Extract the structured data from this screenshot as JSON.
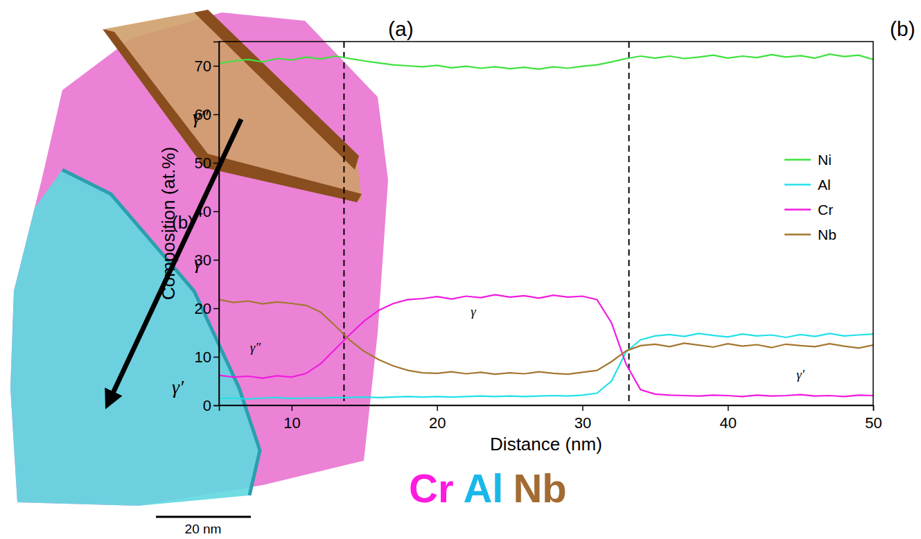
{
  "panel_a": {
    "label": "(a)",
    "phase_labels": [
      "γ″",
      "γ",
      "γ′"
    ],
    "arrow_label": "(b)",
    "scale_bar_label": "20 nm",
    "element_key": [
      {
        "name": "Cr",
        "color": "#ff1adf"
      },
      {
        "name": "Al",
        "color": "#1ab8e8"
      },
      {
        "name": "Nb",
        "color": "#a36b34"
      }
    ]
  },
  "chart_data": {
    "type": "line",
    "panel_label": "(b)",
    "xlabel": "Distance (nm)",
    "ylabel": "Composition (at.%)",
    "xlim": [
      5,
      50
    ],
    "xticks": [
      10,
      20,
      30,
      40,
      50
    ],
    "ylim": [
      0,
      75
    ],
    "yticks": [
      0,
      10,
      20,
      30,
      40,
      50,
      60,
      70
    ],
    "legend": "right",
    "vlines": [
      13.6,
      33.2
    ],
    "annotations": [
      {
        "text": "γ″",
        "x": 7.5,
        "y": 11
      },
      {
        "text": "γ",
        "x": 22.5,
        "y": 18.5
      },
      {
        "text": "γ′",
        "x": 45,
        "y": 5.5
      }
    ],
    "x": [
      5,
      6,
      7,
      8,
      9,
      10,
      11,
      12,
      13,
      14,
      15,
      16,
      17,
      18,
      19,
      20,
      21,
      22,
      23,
      24,
      25,
      26,
      27,
      28,
      29,
      30,
      31,
      32,
      33,
      34,
      35,
      36,
      37,
      38,
      39,
      40,
      41,
      42,
      43,
      44,
      45,
      46,
      47,
      48,
      49,
      50
    ],
    "series": [
      {
        "name": "Ni",
        "color": "#3de23d",
        "values": [
          70.5,
          71,
          71.3,
          70.8,
          71.5,
          71.2,
          71.8,
          71.4,
          72,
          71.5,
          71,
          70.6,
          70.2,
          70,
          69.8,
          70.1,
          69.6,
          69.9,
          69.5,
          69.8,
          69.4,
          69.7,
          69.3,
          69.8,
          69.5,
          69.9,
          70.2,
          70.8,
          71.5,
          72,
          71.6,
          72,
          71.5,
          71.8,
          72.2,
          71.6,
          72,
          71.7,
          72.3,
          71.8,
          72.1,
          71.6,
          72.4,
          71.9,
          72.2,
          71.3
        ]
      },
      {
        "name": "Al",
        "color": "#22e0e8",
        "values": [
          1.4,
          1.5,
          1.3,
          1.5,
          1.6,
          1.4,
          1.5,
          1.5,
          1.6,
          1.6,
          1.7,
          1.6,
          1.7,
          1.8,
          1.7,
          1.8,
          1.7,
          1.8,
          1.9,
          1.8,
          1.9,
          1.8,
          1.9,
          2.0,
          1.9,
          2.1,
          2.5,
          5.0,
          11.0,
          13.5,
          14.3,
          14.6,
          14.2,
          14.8,
          14.4,
          14.1,
          14.7,
          14.3,
          14.5,
          14.0,
          14.6,
          14.2,
          14.8,
          14.3,
          14.5,
          14.7
        ]
      },
      {
        "name": "Cr",
        "color": "#f21ae0",
        "values": [
          6.2,
          5.8,
          6.0,
          5.6,
          6.1,
          5.8,
          6.6,
          8.6,
          11.6,
          14.6,
          17.4,
          19.6,
          21.0,
          21.8,
          22.0,
          22.4,
          21.9,
          22.5,
          22.2,
          22.8,
          22.3,
          22.6,
          22.1,
          22.7,
          22.3,
          22.5,
          21.8,
          17.0,
          8.5,
          3.2,
          2.3,
          2.1,
          2.0,
          1.9,
          2.1,
          2.0,
          1.8,
          2.1,
          1.9,
          2.0,
          2.2,
          1.9,
          2.0,
          1.8,
          2.1,
          2.0
        ]
      },
      {
        "name": "Nb",
        "color": "#a5762f",
        "values": [
          21.8,
          21.2,
          21.5,
          20.9,
          21.3,
          21.0,
          20.6,
          19.2,
          16.4,
          13.4,
          11.1,
          9.4,
          8.1,
          7.2,
          6.7,
          6.6,
          6.9,
          6.5,
          6.8,
          6.4,
          6.7,
          6.5,
          6.9,
          6.6,
          6.4,
          6.8,
          7.2,
          9.0,
          11.2,
          12.3,
          12.6,
          12.1,
          12.8,
          12.4,
          12.0,
          12.7,
          12.2,
          12.5,
          11.9,
          12.6,
          12.3,
          12.1,
          12.7,
          12.2,
          11.8,
          12.4
        ]
      }
    ]
  }
}
